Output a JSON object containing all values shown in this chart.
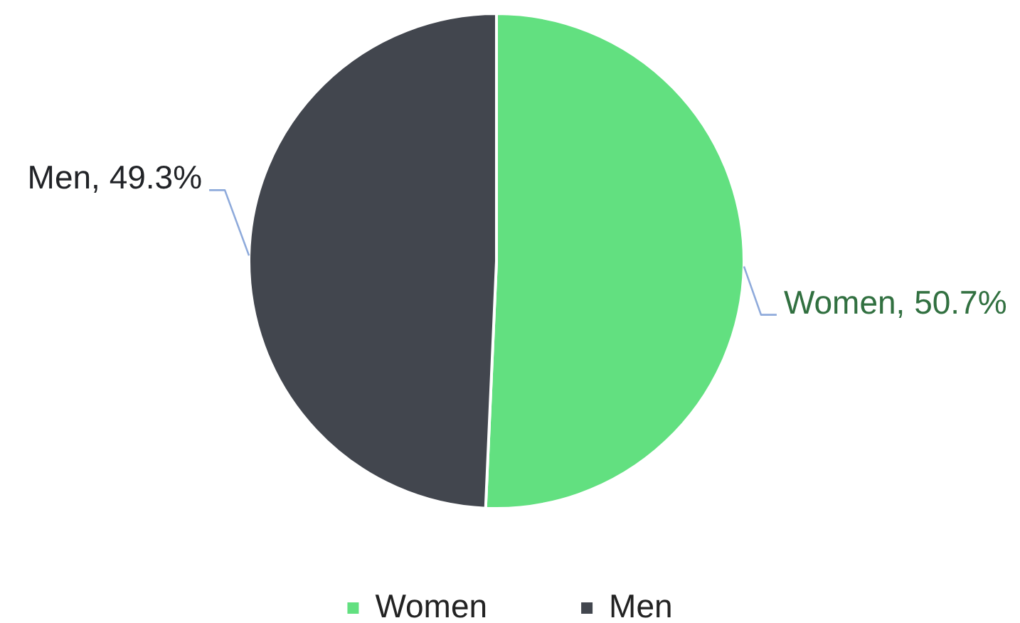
{
  "chart_data": {
    "type": "pie",
    "categories": [
      "Women",
      "Men"
    ],
    "values": [
      50.7,
      49.3
    ],
    "colors": [
      "#62e080",
      "#42464e"
    ],
    "value_labels": [
      "Women, 50.7%",
      "Men, 49.3%"
    ],
    "legend": "bottom"
  }
}
